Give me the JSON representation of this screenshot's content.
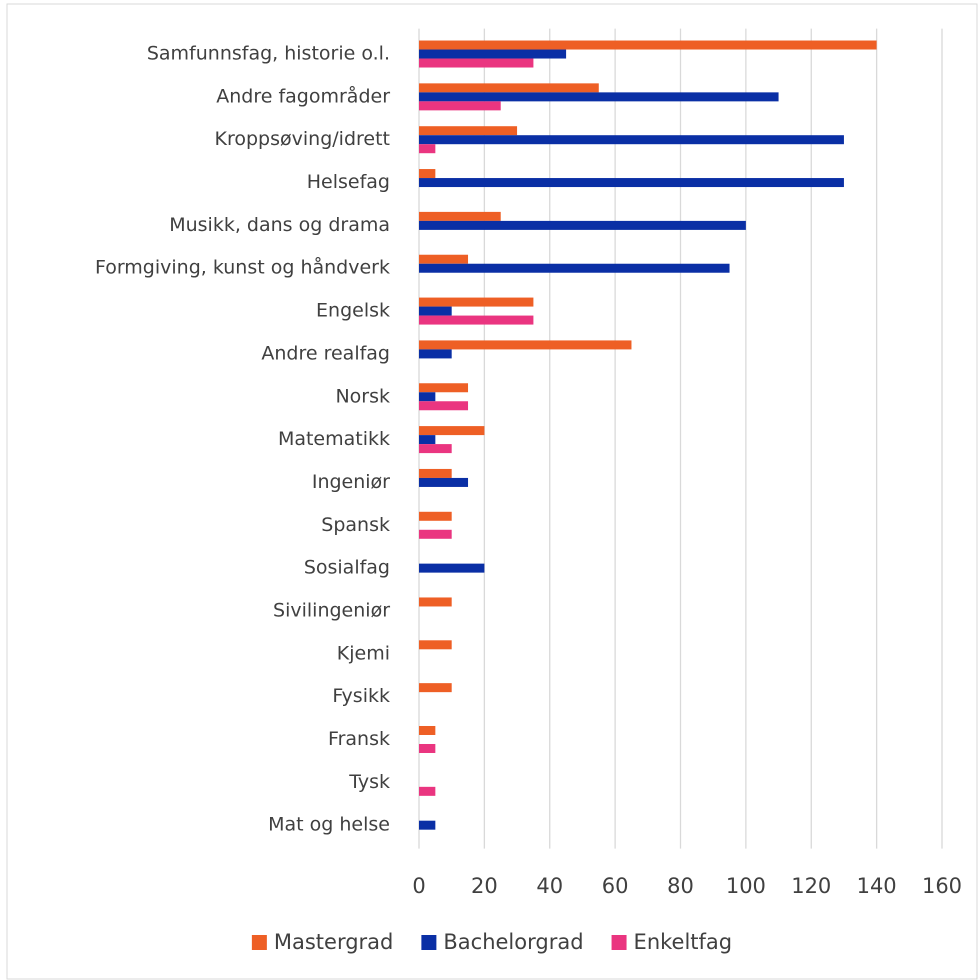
{
  "chart_data": {
    "type": "bar",
    "orientation": "horizontal",
    "categories": [
      "Samfunnsfag, historie o.l.",
      "Andre fagområder",
      "Kroppsøving/idrett",
      "Helsefag",
      "Musikk, dans og drama",
      "Formgiving, kunst og håndverk",
      "Engelsk",
      "Andre realfag",
      "Norsk",
      "Matematikk",
      "Ingeniør",
      "Spansk",
      "Sosialfag",
      "Sivilingeniør",
      "Kjemi",
      "Fysikk",
      "Fransk",
      "Tysk",
      "Mat og helse"
    ],
    "series": [
      {
        "name": "Mastergrad",
        "color": "#ee5f25",
        "values": [
          140,
          55,
          30,
          5,
          25,
          15,
          35,
          65,
          15,
          20,
          10,
          10,
          0,
          10,
          10,
          10,
          5,
          0,
          0
        ]
      },
      {
        "name": "Bachelorgrad",
        "color": "#0a2fa5",
        "values": [
          45,
          110,
          130,
          130,
          100,
          95,
          10,
          10,
          5,
          5,
          15,
          0,
          20,
          0,
          0,
          0,
          0,
          0,
          5
        ]
      },
      {
        "name": "Enkeltfag",
        "color": "#ea3580",
        "values": [
          35,
          25,
          5,
          0,
          0,
          0,
          35,
          0,
          15,
          10,
          0,
          10,
          0,
          0,
          0,
          0,
          5,
          5,
          0
        ]
      }
    ],
    "xlim": [
      0,
      160
    ],
    "xticks": [
      0,
      20,
      40,
      60,
      80,
      100,
      120,
      140,
      160
    ],
    "grid": true,
    "legend": "bottom"
  }
}
